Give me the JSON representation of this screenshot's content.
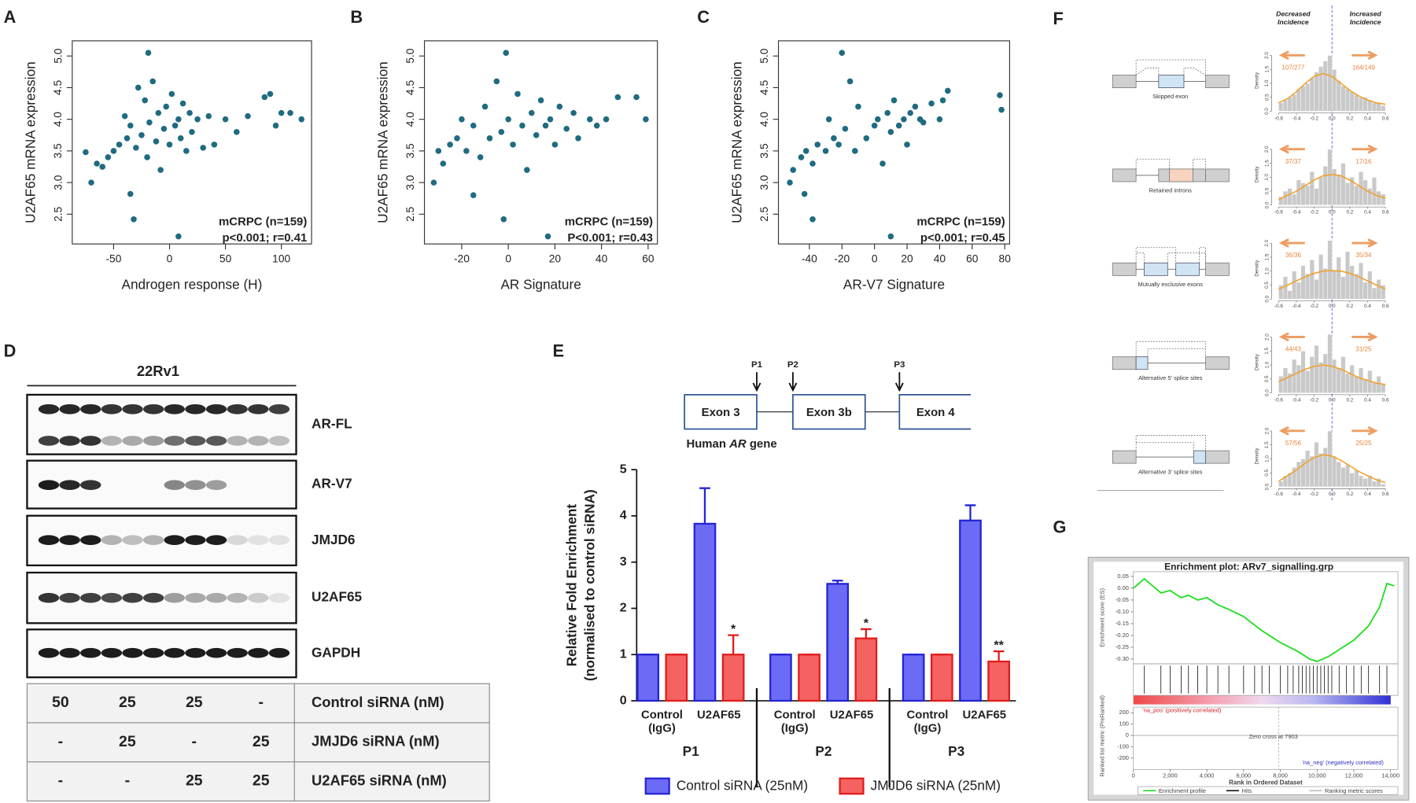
{
  "panel_labels": [
    "A",
    "B",
    "C",
    "D",
    "E",
    "F",
    "G"
  ],
  "chart_data": [
    {
      "type": "scatter",
      "xlabel": "Androgen response (H)",
      "ylabel": "U2AF65 mRNA expression",
      "annotations": [
        "mCRPC (n=159)",
        "p<0.001; r=0.41"
      ],
      "color": "#1f6b80",
      "x": [
        -19,
        -35,
        -32,
        8,
        -75,
        -70,
        -65,
        -60,
        -55,
        -50,
        -45,
        -40,
        -38,
        -35,
        -30,
        -28,
        -25,
        -22,
        -20,
        -18,
        -15,
        -12,
        -10,
        -8,
        -5,
        -3,
        0,
        2,
        5,
        8,
        10,
        12,
        15,
        18,
        20,
        25,
        30,
        35,
        40,
        50,
        60,
        70,
        85,
        90,
        95,
        100,
        108,
        118
      ],
      "values": [
        5.05,
        2.82,
        2.42,
        2.15,
        3.48,
        3.0,
        3.3,
        3.25,
        3.4,
        3.5,
        3.6,
        4.05,
        3.7,
        3.9,
        3.55,
        4.5,
        3.75,
        4.3,
        3.4,
        3.95,
        4.6,
        3.65,
        4.1,
        3.2,
        3.85,
        4.2,
        3.6,
        4.4,
        3.9,
        4.0,
        3.7,
        4.25,
        3.5,
        4.1,
        3.8,
        4.0,
        3.55,
        4.05,
        3.6,
        4.0,
        3.8,
        4.05,
        4.35,
        4.4,
        3.9,
        4.1,
        4.1,
        4.0
      ],
      "xlim": [
        -87,
        127
      ],
      "ylim": [
        2.03,
        5.24
      ],
      "xticks": [
        -50,
        0,
        50,
        100
      ],
      "yticks": [
        2.5,
        {
          "value": 3,
          "label": "3.0"
        },
        3.5,
        {
          "value": 4,
          "label": "4.0"
        },
        4.5,
        {
          "value": 5,
          "label": "5.0"
        }
      ]
    },
    {
      "type": "scatter",
      "xlabel": "AR Signature",
      "ylabel": "U2AF65 mRNA expression",
      "annotations": [
        "mCRPC (n=159)",
        "P<0.001; r=0.43"
      ],
      "color": "#1f6b80",
      "x": [
        -1,
        -15,
        -2,
        17,
        -32,
        -30,
        -28,
        -25,
        -22,
        -20,
        -18,
        -15,
        -12,
        -10,
        -8,
        -5,
        -3,
        0,
        2,
        4,
        6,
        8,
        10,
        12,
        14,
        16,
        18,
        20,
        22,
        25,
        28,
        30,
        35,
        38,
        42,
        47,
        55,
        59
      ],
      "values": [
        5.05,
        2.8,
        2.42,
        2.15,
        3.0,
        3.5,
        3.3,
        3.6,
        3.7,
        4.0,
        3.5,
        3.9,
        3.4,
        4.2,
        3.7,
        4.6,
        3.8,
        4.0,
        3.6,
        4.4,
        3.9,
        3.2,
        4.1,
        3.75,
        4.3,
        3.9,
        4.0,
        3.6,
        4.2,
        3.85,
        4.1,
        3.7,
        4.0,
        3.9,
        4.0,
        4.35,
        4.35,
        4.0
      ],
      "xlim": [
        -36,
        64
      ],
      "ylim": [
        2.03,
        5.24
      ],
      "xticks": [
        -20,
        0,
        20,
        40,
        60
      ],
      "yticks": [
        2.5,
        {
          "value": 3,
          "label": "3.0"
        },
        3.5,
        {
          "value": 4,
          "label": "4.0"
        },
        4.5,
        {
          "value": 5,
          "label": "5.0"
        }
      ]
    },
    {
      "type": "scatter",
      "xlabel": "AR-V7 Signature",
      "ylabel": "U2AF65 mRNA expression",
      "annotations": [
        "mCRPC (n=159)",
        "p<0.001; r=0.45"
      ],
      "color": "#1f6b80",
      "x": [
        -20,
        -43,
        -38,
        10,
        -52,
        -50,
        -45,
        -42,
        -38,
        -35,
        -30,
        -28,
        -25,
        -22,
        -18,
        -15,
        -12,
        -10,
        -5,
        0,
        2,
        5,
        8,
        10,
        12,
        15,
        18,
        20,
        22,
        25,
        28,
        30,
        35,
        40,
        42,
        45,
        77,
        78
      ],
      "values": [
        5.05,
        2.82,
        2.42,
        2.15,
        3.0,
        3.2,
        3.4,
        3.5,
        3.3,
        3.6,
        3.5,
        4.0,
        3.7,
        3.6,
        3.85,
        4.6,
        3.5,
        4.2,
        3.7,
        3.9,
        4.0,
        3.3,
        4.1,
        3.8,
        4.3,
        3.9,
        4.0,
        3.6,
        4.1,
        4.2,
        4.0,
        3.95,
        4.25,
        4.0,
        4.3,
        4.45,
        4.38,
        4.15
      ],
      "xlim": [
        -59,
        83
      ],
      "ylim": [
        2.03,
        5.24
      ],
      "xticks": [
        -40,
        -20,
        0,
        20,
        40,
        60,
        80
      ],
      "yticks": [
        2.5,
        {
          "value": 3,
          "label": "3.0"
        },
        3.5,
        {
          "value": 4,
          "label": "4.0"
        },
        4.5,
        {
          "value": 5,
          "label": "5.0"
        }
      ]
    },
    {
      "type": "bar",
      "ylabel": [
        "Relative Fold Enrichment",
        "(normalised to control siRNA)"
      ],
      "groups": [
        "P1",
        "P2",
        "P3"
      ],
      "categories": [
        "Control (IgG)",
        "U2AF65",
        "Control (IgG)",
        "U2AF65",
        "Control (IgG)",
        "U2AF65"
      ],
      "series": [
        {
          "name": "Control siRNA (25nM)",
          "color": "#6b6bf5",
          "edge": "#2424d6",
          "values": [
            1,
            3.83,
            1,
            2.53,
            1,
            3.9
          ],
          "errors": [
            0,
            0.77,
            0,
            0.07,
            0,
            0.33
          ]
        },
        {
          "name": "JMJD6 siRNA (25nM)",
          "color": "#f46262",
          "edge": "#e01c1c",
          "values": [
            1,
            1.0,
            1,
            1.35,
            1,
            0.85
          ],
          "errors": [
            0,
            0.42,
            0,
            0.2,
            0,
            0.22
          ],
          "significance": [
            null,
            "*",
            null,
            "*",
            null,
            "**"
          ]
        }
      ],
      "ylim": [
        0,
        5
      ],
      "yticks": [
        0,
        1,
        2,
        3,
        4,
        5
      ]
    },
    {
      "type": "histogram",
      "headers": [
        "Decreased Incidence",
        "Increased Incidence"
      ],
      "ylabel": "Density",
      "bins": [
        -0.6,
        -0.55,
        -0.5,
        -0.45,
        -0.4,
        -0.35,
        -0.3,
        -0.25,
        -0.2,
        -0.15,
        -0.1,
        -0.05,
        0,
        0.05,
        0.1,
        0.15,
        0.2,
        0.25,
        0.3,
        0.35,
        0.4,
        0.45,
        0.5,
        0.55,
        0.6
      ],
      "curve_x": [
        -0.6,
        -0.5,
        -0.4,
        -0.3,
        -0.2,
        -0.1,
        0,
        0.1,
        0.2,
        0.3,
        0.4,
        0.5,
        0.6
      ],
      "reference_x": 0,
      "xlim": [
        -0.66,
        0.66
      ],
      "ylim": [
        0,
        2.2
      ],
      "xticks": [
        -0.6,
        -0.4,
        -0.2,
        {
          "value": 0,
          "label": "0.0"
        },
        0.2,
        0.4,
        0.6
      ],
      "yticks": [
        {
          "value": 0,
          "label": "0.0"
        },
        0.5,
        {
          "value": 1,
          "label": "1.0"
        },
        1.5,
        {
          "value": 2,
          "label": "2.0"
        }
      ],
      "bar_color": "#c9c9c9",
      "curve_color": "#f0a22e",
      "count_color": "#e8843a",
      "histograms": [
        {
          "event": "Skipped exon",
          "decreased": "107/277",
          "increased": "164/149",
          "values": [
            0.3,
            0.4,
            0.5,
            0.6,
            0.8,
            0.9,
            1.0,
            1.2,
            1.4,
            1.6,
            1.8,
            2.0,
            1.5,
            1.1,
            0.9,
            0.8,
            0.7,
            0.6,
            0.5,
            0.5,
            0.4,
            0.3,
            0.3,
            0.2
          ],
          "curve": [
            0.3,
            0.45,
            0.7,
            1.0,
            1.25,
            1.35,
            1.25,
            1.0,
            0.75,
            0.55,
            0.4,
            0.3,
            0.25
          ]
        },
        {
          "event": "Retained introns",
          "decreased": "37/37",
          "increased": "17/16",
          "values": [
            0.3,
            0.5,
            0.6,
            0.4,
            0.9,
            0.8,
            0.7,
            1.2,
            0.6,
            1.0,
            1.4,
            2.0,
            1.3,
            1.1,
            1.5,
            0.8,
            1.0,
            0.7,
            1.2,
            0.9,
            0.6,
            1.0,
            0.5,
            0.4
          ],
          "curve": [
            0.2,
            0.35,
            0.5,
            0.7,
            0.9,
            1.05,
            1.1,
            1.05,
            0.9,
            0.7,
            0.5,
            0.35,
            0.25
          ]
        },
        {
          "event": "Mutually exclusive exons",
          "decreased": "36/36",
          "increased": "35/34",
          "values": [
            0.5,
            0.8,
            0.3,
            1.0,
            0.6,
            1.2,
            0.9,
            1.4,
            0.7,
            1.6,
            1.1,
            2.1,
            1.0,
            1.5,
            0.8,
            1.7,
            1.2,
            0.9,
            1.3,
            0.6,
            1.0,
            0.4,
            0.7,
            0.5
          ],
          "curve": [
            0.35,
            0.5,
            0.65,
            0.8,
            0.92,
            1.0,
            1.02,
            1.0,
            0.92,
            0.8,
            0.65,
            0.5,
            0.35
          ]
        },
        {
          "event": "Alternative 5' splice sites",
          "decreased": "44/43",
          "increased": "31/25",
          "values": [
            0.6,
            0.9,
            0.7,
            1.2,
            1.0,
            1.5,
            0.8,
            1.3,
            1.7,
            1.1,
            1.4,
            2.1,
            1.2,
            0.9,
            1.3,
            0.7,
            1.0,
            0.6,
            0.9,
            0.5,
            0.8,
            0.4,
            0.6,
            0.3
          ],
          "curve": [
            0.4,
            0.55,
            0.7,
            0.85,
            0.95,
            1.0,
            0.95,
            0.85,
            0.7,
            0.55,
            0.45,
            0.35,
            0.3
          ]
        },
        {
          "event": "Alternative 3' splice sites",
          "decreased": "57/56",
          "increased": "25/25",
          "values": [
            0.2,
            0.4,
            0.5,
            0.7,
            0.9,
            1.0,
            1.3,
            1.1,
            1.6,
            1.2,
            1.4,
            2.0,
            1.1,
            0.9,
            0.7,
            0.8,
            0.5,
            0.6,
            0.4,
            0.3,
            0.4,
            0.2,
            0.3,
            0.1
          ],
          "curve": [
            0.2,
            0.4,
            0.6,
            0.85,
            1.05,
            1.15,
            1.1,
            0.95,
            0.75,
            0.55,
            0.4,
            0.25,
            0.15
          ]
        }
      ]
    },
    {
      "type": "line",
      "title": "Enrichment plot: ARv7_signalling.grp",
      "ylabel": "Enrichment score (ES)",
      "y2label": "Ranked list metric (PreRanked)",
      "xlabel": "Rank in Ordered Dataset",
      "x": [
        0,
        600,
        1500,
        2000,
        2600,
        3000,
        3500,
        4000,
        4600,
        5200,
        6000,
        7000,
        8000,
        9000,
        9600,
        10000,
        10600,
        11200,
        12000,
        12800,
        13400,
        13800,
        14200
      ],
      "values": [
        0.0,
        0.04,
        -0.02,
        -0.01,
        -0.04,
        -0.03,
        -0.05,
        -0.04,
        -0.07,
        -0.09,
        -0.12,
        -0.18,
        -0.23,
        -0.27,
        -0.3,
        -0.31,
        -0.29,
        -0.26,
        -0.22,
        -0.16,
        -0.08,
        0.02,
        0.01
      ],
      "color": "#22dd22",
      "hits": [
        600,
        1500,
        2000,
        2600,
        3000,
        3500,
        4000,
        4600,
        5200,
        6000,
        6600,
        7000,
        7400,
        8000,
        8400,
        8700,
        9000,
        9200,
        9400,
        9600,
        9800,
        10000,
        10200,
        10400,
        10600,
        10800,
        11200,
        11600,
        12000,
        12400,
        12800,
        13400,
        13800
      ],
      "xlim": [
        0,
        14400
      ],
      "ylim": [
        -0.32,
        0.07
      ],
      "xticks": [
        0,
        {
          "value": 2000,
          "label": "2,000"
        },
        {
          "value": 4000,
          "label": "4,000"
        },
        {
          "value": 6000,
          "label": "6,000"
        },
        {
          "value": 8000,
          "label": "8,000"
        },
        {
          "value": 10000,
          "label": "10,000"
        },
        {
          "value": 12000,
          "label": "12,000"
        },
        {
          "value": 14000,
          "label": "14,000"
        }
      ],
      "yticks": [
        0.05,
        {
          "value": 0,
          "label": "0.00"
        },
        -0.05,
        {
          "value": -0.1,
          "label": "-0.10"
        },
        -0.15,
        {
          "value": -0.2,
          "label": "-0.20"
        },
        -0.25,
        {
          "value": -0.3,
          "label": "-0.30"
        }
      ],
      "y2lim": [
        -300,
        250
      ],
      "y2ticks": [
        200,
        100,
        0,
        -100,
        -200
      ],
      "zero_cross": 7903,
      "texts": [
        "'na_pos' (positively correlated)",
        "Zero cross at 7903",
        "'na_neg' (negatively correlated)"
      ],
      "legend": [
        "Enrichment profile",
        "Hits",
        "Ranking metric scores"
      ]
    }
  ],
  "blot": {
    "title": "22Rv1",
    "rows": [
      "AR-FL",
      "AR-V7",
      "JMJD6",
      "U2AF65",
      "GAPDH"
    ]
  },
  "table": {
    "rows": [
      {
        "cells": [
          "50",
          "25",
          "25",
          "-"
        ],
        "label": "Control siRNA (nM)"
      },
      {
        "cells": [
          "-",
          "25",
          "-",
          "25"
        ],
        "label": "JMJD6 siRNA (nM)"
      },
      {
        "cells": [
          "-",
          "-",
          "25",
          "25"
        ],
        "label": "U2AF65 siRNA (nM)"
      }
    ]
  },
  "gene_diagram": {
    "primers": [
      "P1",
      "P2",
      "P3"
    ],
    "exons": [
      "Exon 3",
      "Exon 3b",
      "Exon 4"
    ],
    "caption": [
      "Human",
      "AR",
      "gene"
    ]
  }
}
